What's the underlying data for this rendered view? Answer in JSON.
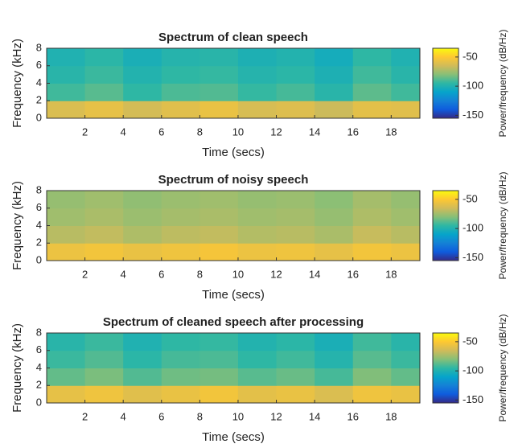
{
  "chart_data": [
    {
      "type": "heatmap",
      "title": "Spectrum of clean speech",
      "xlabel": "Time (secs)",
      "ylabel": "Frequency (kHz)",
      "xlim": [
        0,
        19.5
      ],
      "ylim": [
        0,
        8
      ],
      "xticks": [
        2,
        4,
        6,
        8,
        10,
        12,
        14,
        16,
        18
      ],
      "yticks": [
        0,
        2,
        4,
        6,
        8
      ],
      "xbins": [
        0,
        2,
        4,
        6,
        8,
        10,
        12,
        14,
        16,
        18,
        19.5
      ],
      "ybins": [
        0,
        2,
        4,
        6,
        8
      ],
      "z": [
        [
          -62,
          -58,
          -64,
          -60,
          -57,
          -63,
          -61,
          -66,
          -59,
          -60
        ],
        [
          -92,
          -88,
          -95,
          -90,
          -89,
          -94,
          -91,
          -97,
          -87,
          -92
        ],
        [
          -97,
          -93,
          -99,
          -95,
          -94,
          -98,
          -96,
          -101,
          -92,
          -97
        ],
        [
          -100,
          -96,
          -102,
          -98,
          -97,
          -101,
          -99,
          -104,
          -95,
          -100
        ]
      ],
      "clim": [
        -155,
        -35
      ],
      "cticks": [
        -50,
        -100,
        -150
      ],
      "clabel": "Power/frequency (dB/Hz)",
      "colormap": [
        "#352a87",
        "#0f5cdd",
        "#1481d6",
        "#06a4ca",
        "#2eb7a4",
        "#87bf77",
        "#d1bb59",
        "#fec832",
        "#f9fb0e"
      ]
    },
    {
      "type": "heatmap",
      "title": "Spectrum of noisy speech",
      "xlabel": "Time (secs)",
      "ylabel": "Frequency (kHz)",
      "xlim": [
        0,
        19.5
      ],
      "ylim": [
        0,
        8
      ],
      "xticks": [
        2,
        4,
        6,
        8,
        10,
        12,
        14,
        16,
        18
      ],
      "yticks": [
        0,
        2,
        4,
        6,
        8
      ],
      "xbins": [
        0,
        2,
        4,
        6,
        8,
        10,
        12,
        14,
        16,
        18,
        19.5
      ],
      "ybins": [
        0,
        2,
        4,
        6,
        8
      ],
      "z": [
        [
          -56,
          -54,
          -57,
          -55,
          -53,
          -56,
          -55,
          -58,
          -54,
          -56
        ],
        [
          -70,
          -68,
          -72,
          -69,
          -68,
          -71,
          -70,
          -73,
          -67,
          -70
        ],
        [
          -75,
          -73,
          -76,
          -74,
          -73,
          -75,
          -74,
          -77,
          -72,
          -75
        ],
        [
          -77,
          -75,
          -78,
          -76,
          -75,
          -77,
          -76,
          -79,
          -74,
          -77
        ]
      ],
      "clim": [
        -155,
        -35
      ],
      "cticks": [
        -50,
        -100,
        -150
      ],
      "clabel": "Power/frequency (dB/Hz)",
      "colormap": [
        "#352a87",
        "#0f5cdd",
        "#1481d6",
        "#06a4ca",
        "#2eb7a4",
        "#87bf77",
        "#d1bb59",
        "#fec832",
        "#f9fb0e"
      ]
    },
    {
      "type": "heatmap",
      "title": "Spectrum of cleaned speech after processing",
      "xlabel": "Time (secs)",
      "ylabel": "Frequency (kHz)",
      "xlim": [
        0,
        19.5
      ],
      "ylim": [
        0,
        8
      ],
      "xticks": [
        2,
        4,
        6,
        8,
        10,
        12,
        14,
        16,
        18
      ],
      "yticks": [
        0,
        2,
        4,
        6,
        8
      ],
      "xbins": [
        0,
        2,
        4,
        6,
        8,
        10,
        12,
        14,
        16,
        18,
        19.5
      ],
      "ybins": [
        0,
        2,
        4,
        6,
        8
      ],
      "z": [
        [
          -58,
          -55,
          -60,
          -57,
          -54,
          -59,
          -57,
          -62,
          -55,
          -57
        ],
        [
          -86,
          -82,
          -89,
          -84,
          -83,
          -88,
          -85,
          -91,
          -81,
          -86
        ],
        [
          -93,
          -89,
          -96,
          -91,
          -90,
          -95,
          -92,
          -98,
          -88,
          -93
        ],
        [
          -97,
          -93,
          -100,
          -95,
          -94,
          -99,
          -96,
          -102,
          -92,
          -97
        ]
      ],
      "clim": [
        -155,
        -35
      ],
      "cticks": [
        -50,
        -100,
        -150
      ],
      "clabel": "Power/frequency (dB/Hz)",
      "colormap": [
        "#352a87",
        "#0f5cdd",
        "#1481d6",
        "#06a4ca",
        "#2eb7a4",
        "#87bf77",
        "#d1bb59",
        "#fec832",
        "#f9fb0e"
      ]
    }
  ]
}
